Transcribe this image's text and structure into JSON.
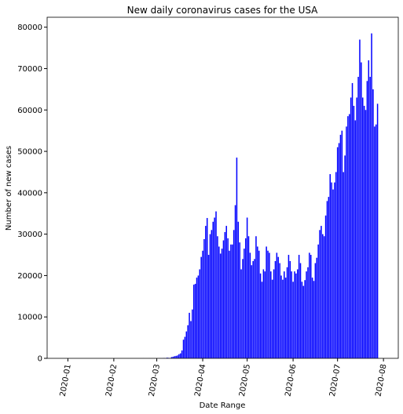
{
  "chart_data": {
    "type": "bar",
    "title": "New daily coronavirus cases for the USA",
    "xlabel": "Date Range",
    "ylabel": "Number of new cases",
    "color": "#0000ff",
    "xlim": [
      "2019-12-18",
      "2020-08-11"
    ],
    "ylim": [
      0,
      82400
    ],
    "yticks": [
      0,
      10000,
      20000,
      30000,
      40000,
      50000,
      60000,
      70000,
      80000
    ],
    "xticks": [
      {
        "value": "2020-01-01",
        "label": "2020-01"
      },
      {
        "value": "2020-02-01",
        "label": "2020-02"
      },
      {
        "value": "2020-03-01",
        "label": "2020-03"
      },
      {
        "value": "2020-04-01",
        "label": "2020-04"
      },
      {
        "value": "2020-05-01",
        "label": "2020-05"
      },
      {
        "value": "2020-06-01",
        "label": "2020-06"
      },
      {
        "value": "2020-07-01",
        "label": "2020-07"
      },
      {
        "value": "2020-08-01",
        "label": "2020-08"
      }
    ],
    "x": [
      "2020-01-22",
      "2020-01-23",
      "2020-01-24",
      "2020-01-25",
      "2020-01-26",
      "2020-01-27",
      "2020-01-28",
      "2020-01-29",
      "2020-01-30",
      "2020-01-31",
      "2020-02-01",
      "2020-02-02",
      "2020-02-03",
      "2020-02-04",
      "2020-02-05",
      "2020-02-06",
      "2020-02-07",
      "2020-02-08",
      "2020-02-09",
      "2020-02-10",
      "2020-02-11",
      "2020-02-12",
      "2020-02-13",
      "2020-02-14",
      "2020-02-15",
      "2020-02-16",
      "2020-02-17",
      "2020-02-18",
      "2020-02-19",
      "2020-02-20",
      "2020-02-21",
      "2020-02-22",
      "2020-02-23",
      "2020-02-24",
      "2020-02-25",
      "2020-02-26",
      "2020-02-27",
      "2020-02-28",
      "2020-02-29",
      "2020-03-01",
      "2020-03-02",
      "2020-03-03",
      "2020-03-04",
      "2020-03-05",
      "2020-03-06",
      "2020-03-07",
      "2020-03-08",
      "2020-03-09",
      "2020-03-10",
      "2020-03-11",
      "2020-03-12",
      "2020-03-13",
      "2020-03-14",
      "2020-03-15",
      "2020-03-16",
      "2020-03-17",
      "2020-03-18",
      "2020-03-19",
      "2020-03-20",
      "2020-03-21",
      "2020-03-22",
      "2020-03-23",
      "2020-03-24",
      "2020-03-25",
      "2020-03-26",
      "2020-03-27",
      "2020-03-28",
      "2020-03-29",
      "2020-03-30",
      "2020-03-31",
      "2020-04-01",
      "2020-04-02",
      "2020-04-03",
      "2020-04-04",
      "2020-04-05",
      "2020-04-06",
      "2020-04-07",
      "2020-04-08",
      "2020-04-09",
      "2020-04-10",
      "2020-04-11",
      "2020-04-12",
      "2020-04-13",
      "2020-04-14",
      "2020-04-15",
      "2020-04-16",
      "2020-04-17",
      "2020-04-18",
      "2020-04-19",
      "2020-04-20",
      "2020-04-21",
      "2020-04-22",
      "2020-04-23",
      "2020-04-24",
      "2020-04-25",
      "2020-04-26",
      "2020-04-27",
      "2020-04-28",
      "2020-04-29",
      "2020-04-30",
      "2020-05-01",
      "2020-05-02",
      "2020-05-03",
      "2020-05-04",
      "2020-05-05",
      "2020-05-06",
      "2020-05-07",
      "2020-05-08",
      "2020-05-09",
      "2020-05-10",
      "2020-05-11",
      "2020-05-12",
      "2020-05-13",
      "2020-05-14",
      "2020-05-15",
      "2020-05-16",
      "2020-05-17",
      "2020-05-18",
      "2020-05-19",
      "2020-05-20",
      "2020-05-21",
      "2020-05-22",
      "2020-05-23",
      "2020-05-24",
      "2020-05-25",
      "2020-05-26",
      "2020-05-27",
      "2020-05-28",
      "2020-05-29",
      "2020-05-30",
      "2020-05-31",
      "2020-06-01",
      "2020-06-02",
      "2020-06-03",
      "2020-06-04",
      "2020-06-05",
      "2020-06-06",
      "2020-06-07",
      "2020-06-08",
      "2020-06-09",
      "2020-06-10",
      "2020-06-11",
      "2020-06-12",
      "2020-06-13",
      "2020-06-14",
      "2020-06-15",
      "2020-06-16",
      "2020-06-17",
      "2020-06-18",
      "2020-06-19",
      "2020-06-20",
      "2020-06-21",
      "2020-06-22",
      "2020-06-23",
      "2020-06-24",
      "2020-06-25",
      "2020-06-26",
      "2020-06-27",
      "2020-06-28",
      "2020-06-29",
      "2020-06-30",
      "2020-07-01",
      "2020-07-02",
      "2020-07-03",
      "2020-07-04",
      "2020-07-05",
      "2020-07-06",
      "2020-07-07",
      "2020-07-08",
      "2020-07-09",
      "2020-07-10",
      "2020-07-11",
      "2020-07-12",
      "2020-07-13",
      "2020-07-14",
      "2020-07-15",
      "2020-07-16",
      "2020-07-17",
      "2020-07-18",
      "2020-07-19",
      "2020-07-20",
      "2020-07-21",
      "2020-07-22",
      "2020-07-23",
      "2020-07-24",
      "2020-07-25",
      "2020-07-26",
      "2020-07-27",
      "2020-07-28"
    ],
    "values": [
      1,
      0,
      1,
      0,
      3,
      0,
      0,
      0,
      0,
      1,
      1,
      0,
      3,
      0,
      0,
      0,
      0,
      0,
      0,
      0,
      1,
      0,
      1,
      0,
      0,
      0,
      0,
      0,
      0,
      0,
      18,
      0,
      0,
      0,
      14,
      0,
      0,
      1,
      4,
      8,
      7,
      23,
      19,
      33,
      77,
      53,
      166,
      116,
      75,
      300,
      390,
      510,
      590,
      700,
      1000,
      1200,
      1900,
      4500,
      5200,
      6500,
      8000,
      11000,
      9000,
      11800,
      17800,
      18000,
      19500,
      20000,
      21500,
      24500,
      26000,
      28800,
      32000,
      33900,
      25000,
      30000,
      31000,
      33000,
      34000,
      35500,
      29500,
      27000,
      25300,
      26500,
      28500,
      30500,
      32000,
      29000,
      26000,
      27500,
      27500,
      31000,
      37000,
      48500,
      33000,
      28000,
      21500,
      24000,
      26500,
      29000,
      34000,
      29500,
      25500,
      22500,
      23500,
      24000,
      29500,
      27000,
      26000,
      20500,
      18500,
      21500,
      21000,
      27000,
      26000,
      25500,
      21000,
      19000,
      21500,
      23500,
      25500,
      24500,
      23000,
      20000,
      19000,
      21000,
      19500,
      22000,
      25000,
      23500,
      21000,
      18500,
      21000,
      20500,
      21500,
      25000,
      23000,
      18500,
      17500,
      18900,
      21000,
      22000,
      25500,
      25000,
      19500,
      18700,
      23000,
      24300,
      27500,
      31000,
      32000,
      30000,
      29500,
      34500,
      38000,
      39000,
      44500,
      42500,
      40800,
      42500,
      45000,
      51000,
      52000,
      54000,
      55000,
      45000,
      49000,
      56000,
      58500,
      59000,
      63000,
      66500,
      61000,
      57500,
      63000,
      68000,
      77000,
      71500,
      63000,
      61000,
      60000,
      67000,
      72000,
      68000,
      78500,
      65000,
      56000,
      56500,
      61500
    ]
  }
}
